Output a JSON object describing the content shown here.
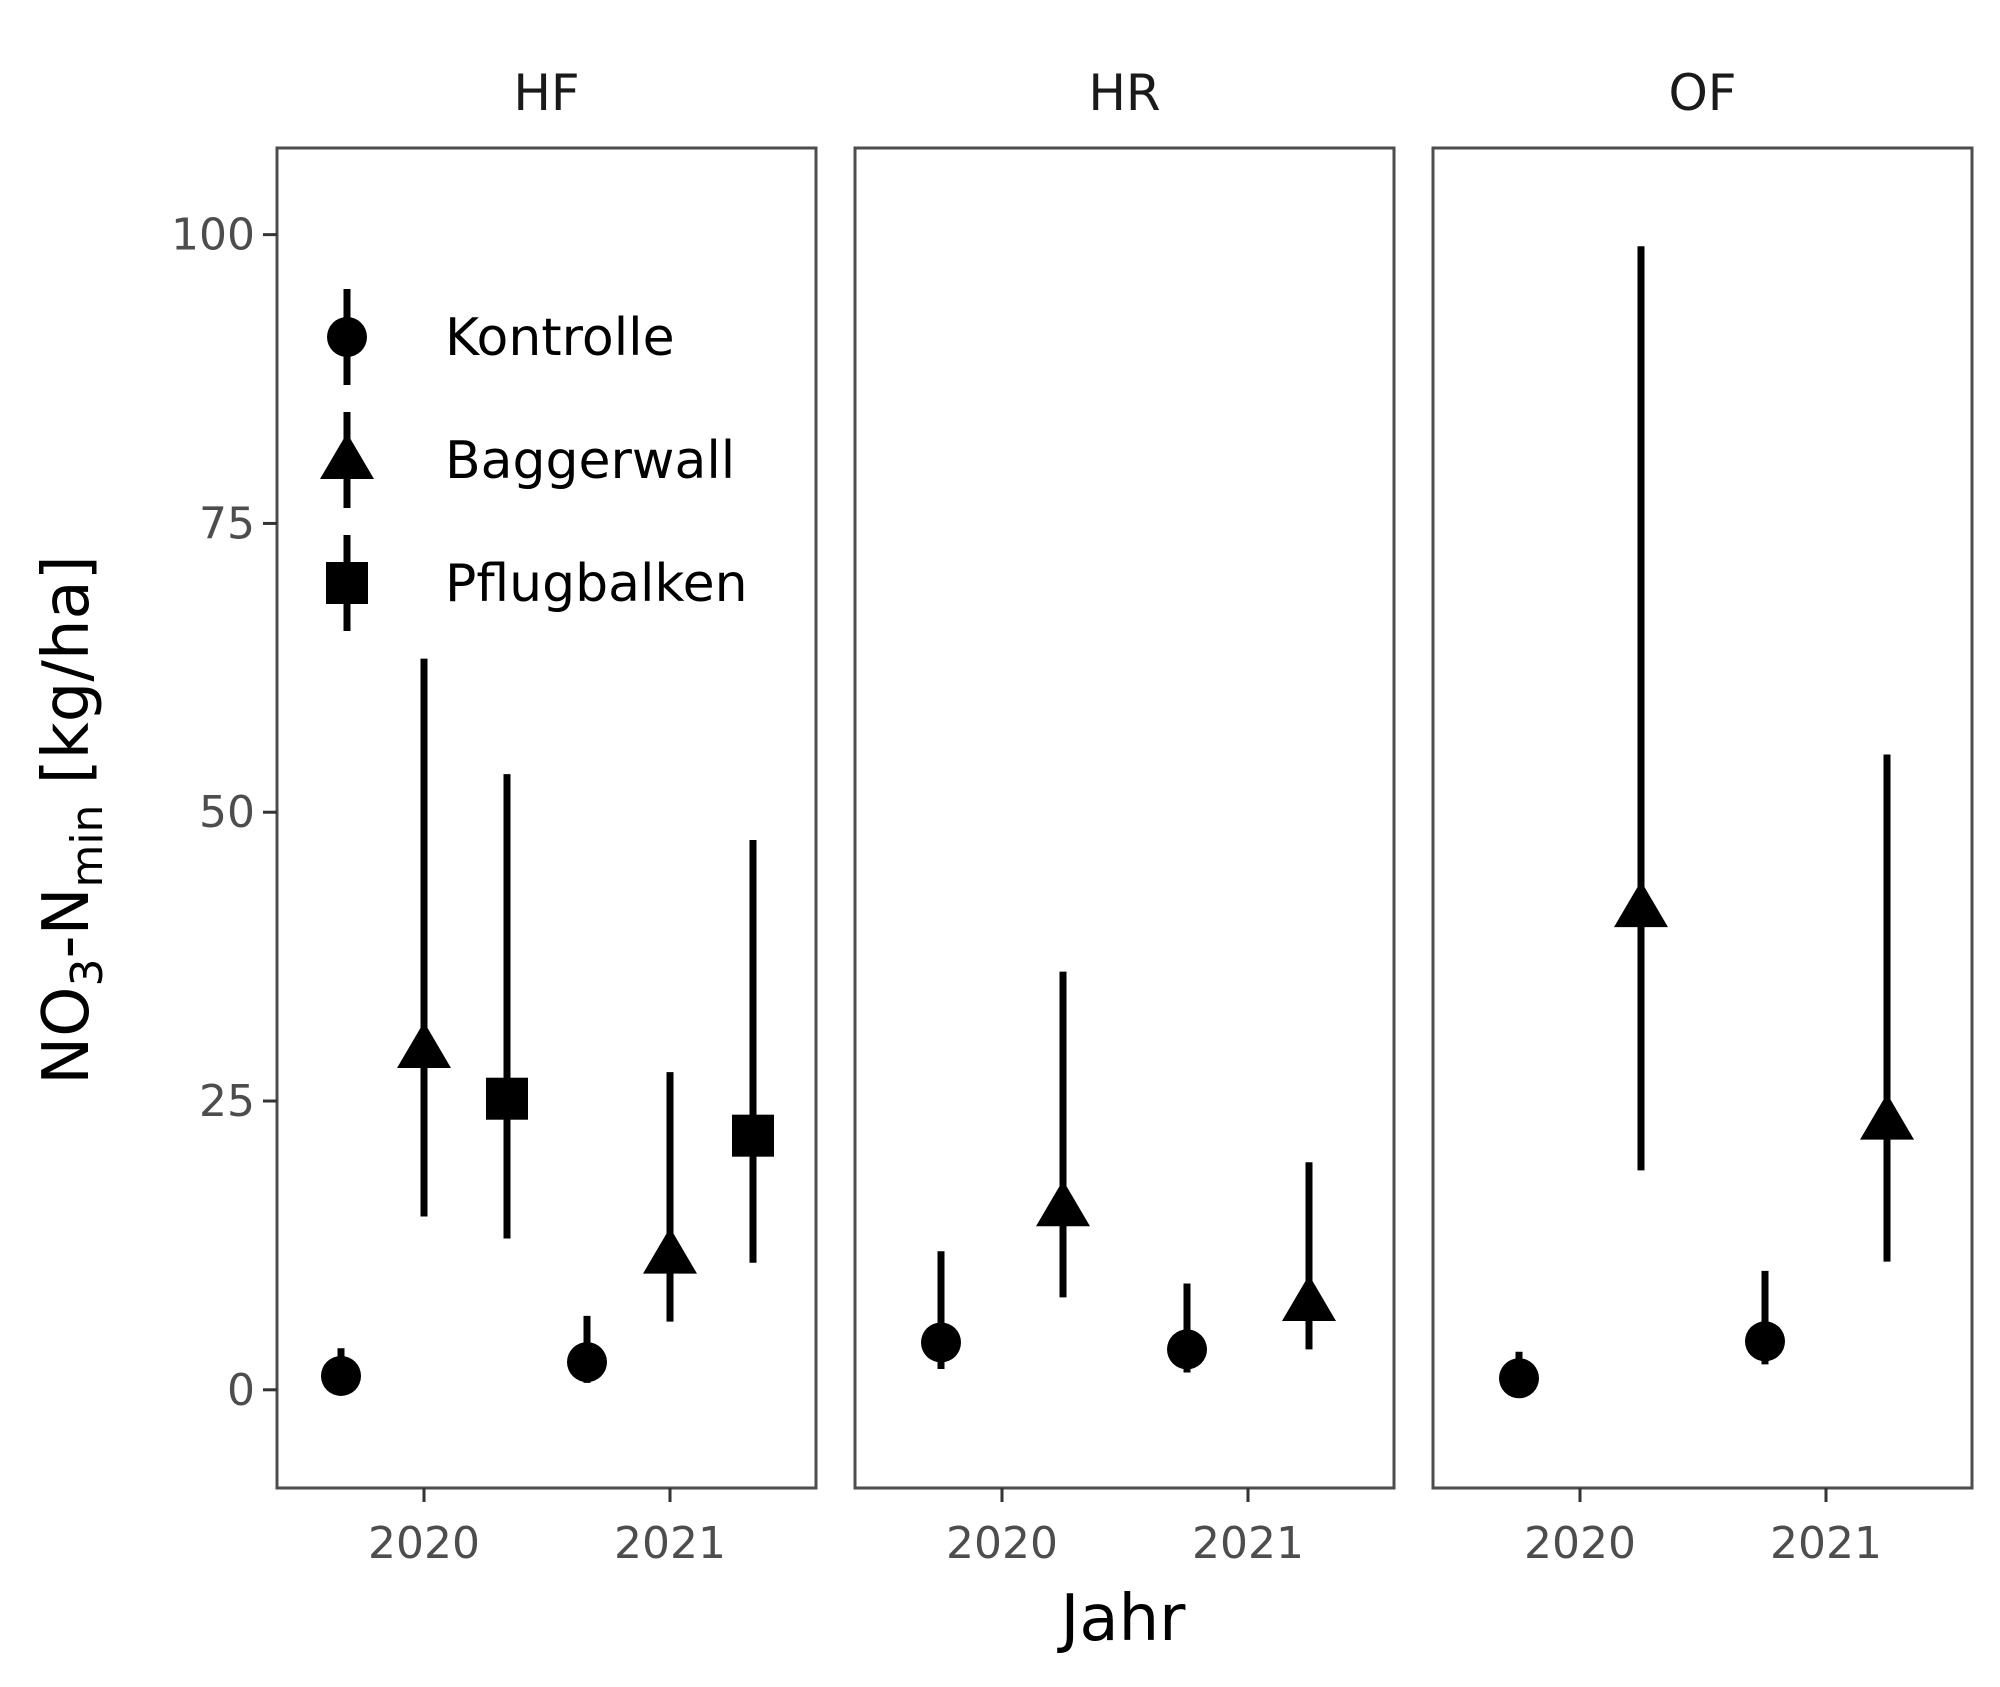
{
  "chart_data": {
    "type": "scatter",
    "subtype": "point-range faceted",
    "xlabel": "Jahr",
    "ylabel": {
      "prefix": "NO",
      "sub1": "3",
      "mid": "-N",
      "sub2": "min",
      "suffix": " [kg/ha]"
    },
    "ylim": [
      -8.5,
      107.5
    ],
    "yticks": [
      "0",
      "25",
      "50",
      "75",
      "100"
    ],
    "xticks": [
      "2020",
      "2021"
    ],
    "grid": false,
    "legend_position": "top-left inside first panel",
    "colors": {
      "marks": "#000000",
      "panel_border": "#4d4d4d",
      "tick_text": "#4d4d4d"
    },
    "legend": [
      {
        "name": "Kontrolle",
        "shape": "circle"
      },
      {
        "name": "Baggerwall",
        "shape": "triangle"
      },
      {
        "name": "Pflugbalken",
        "shape": "square"
      }
    ],
    "facets": [
      {
        "label": "HF",
        "points": [
          {
            "year": 2020,
            "series": "Kontrolle",
            "y": 1.2,
            "ymin": 0.0,
            "ymax": 3.6
          },
          {
            "year": 2020,
            "series": "Baggerwall",
            "y": 29.5,
            "ymin": 15.0,
            "ymax": 63.3
          },
          {
            "year": 2020,
            "series": "Pflugbalken",
            "y": 25.2,
            "ymin": 13.1,
            "ymax": 53.3
          },
          {
            "year": 2021,
            "series": "Kontrolle",
            "y": 2.4,
            "ymin": 0.6,
            "ymax": 6.4
          },
          {
            "year": 2021,
            "series": "Baggerwall",
            "y": 11.7,
            "ymin": 5.9,
            "ymax": 27.5
          },
          {
            "year": 2021,
            "series": "Pflugbalken",
            "y": 22.0,
            "ymin": 11.0,
            "ymax": 47.6
          }
        ]
      },
      {
        "label": "HR",
        "points": [
          {
            "year": 2020,
            "series": "Kontrolle",
            "y": 4.1,
            "ymin": 1.8,
            "ymax": 12.0
          },
          {
            "year": 2020,
            "series": "Baggerwall",
            "y": 15.8,
            "ymin": 8.0,
            "ymax": 36.2
          },
          {
            "year": 2021,
            "series": "Kontrolle",
            "y": 3.5,
            "ymin": 1.5,
            "ymax": 9.2
          },
          {
            "year": 2021,
            "series": "Baggerwall",
            "y": 7.6,
            "ymin": 3.5,
            "ymax": 19.7
          }
        ]
      },
      {
        "label": "OF",
        "points": [
          {
            "year": 2020,
            "series": "Kontrolle",
            "y": 1.0,
            "ymin": 0.2,
            "ymax": 3.3
          },
          {
            "year": 2020,
            "series": "Baggerwall",
            "y": 41.7,
            "ymin": 19.0,
            "ymax": 99.0
          },
          {
            "year": 2021,
            "series": "Kontrolle",
            "y": 4.2,
            "ymin": 2.2,
            "ymax": 10.3
          },
          {
            "year": 2021,
            "series": "Baggerwall",
            "y": 23.3,
            "ymin": 11.1,
            "ymax": 55.0
          }
        ]
      }
    ]
  }
}
